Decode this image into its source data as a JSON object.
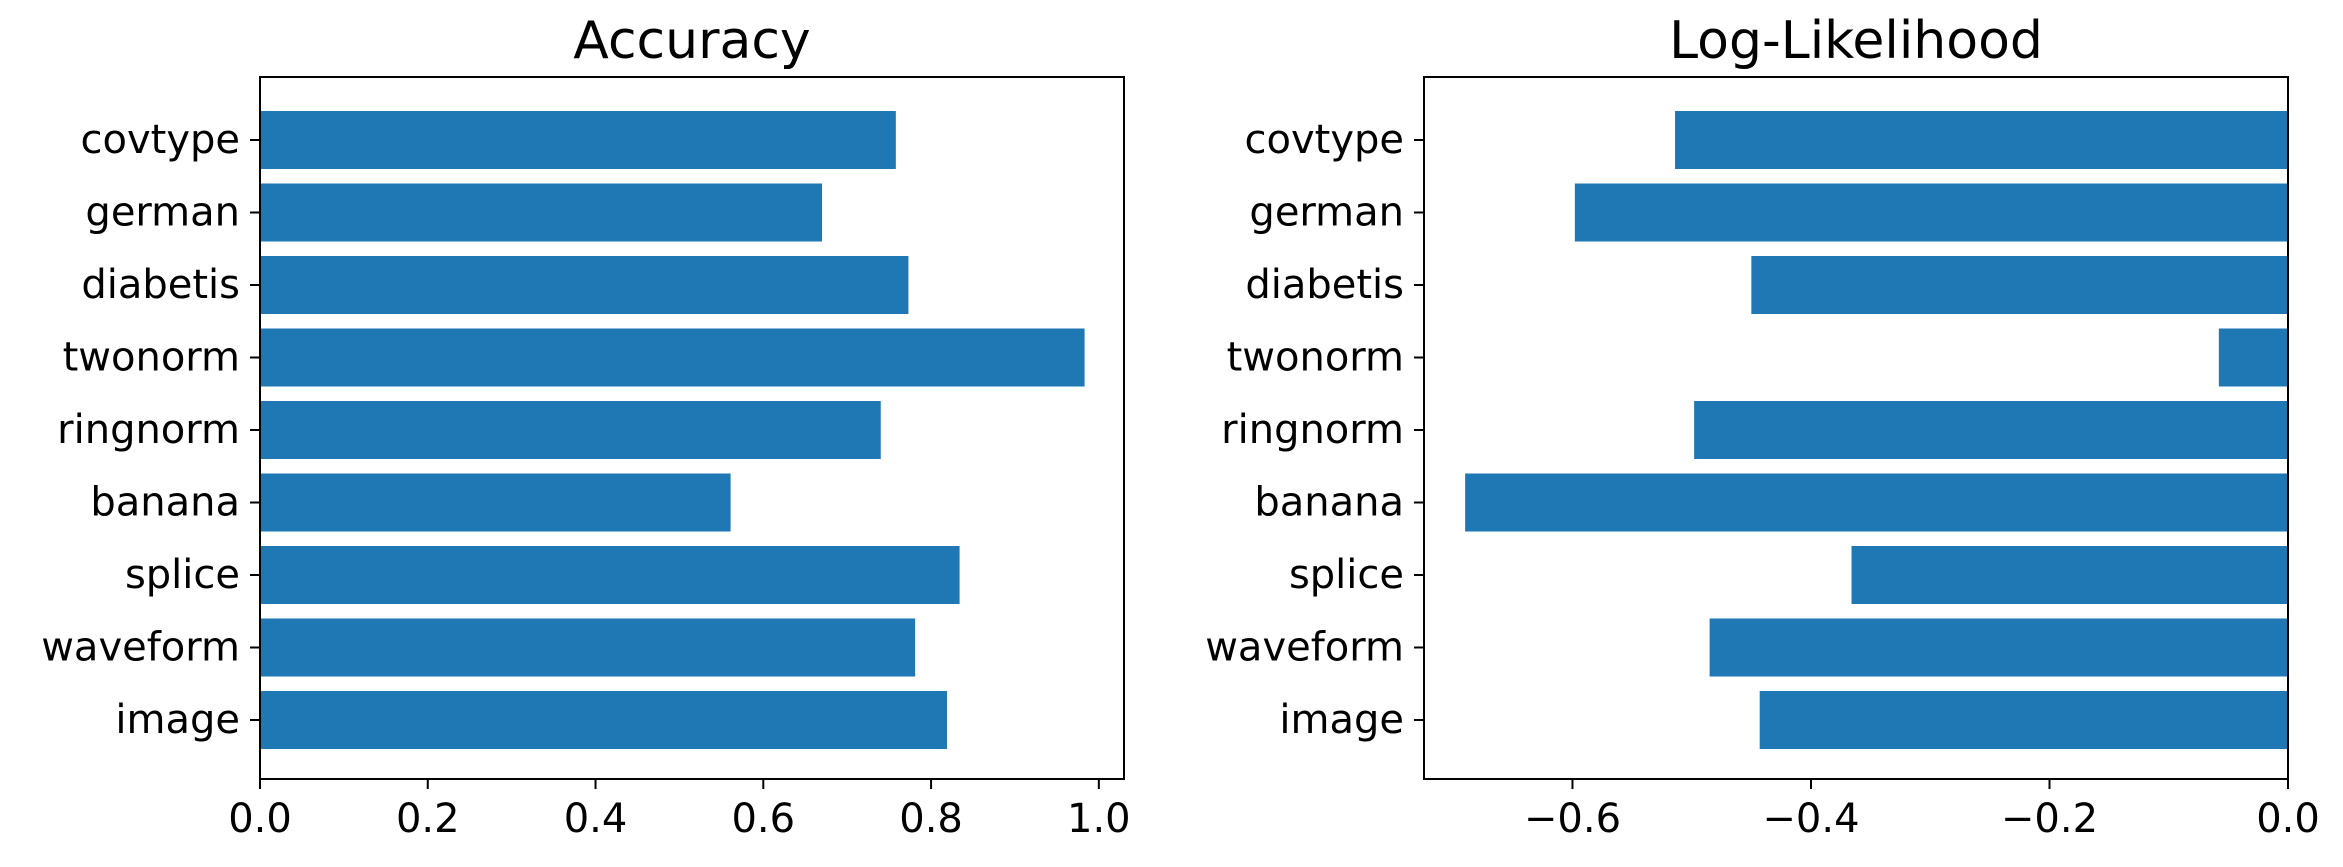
{
  "chart_data": [
    {
      "type": "bar",
      "orientation": "horizontal",
      "title": "Accuracy",
      "categories": [
        "covtype",
        "german",
        "diabetis",
        "twonorm",
        "ringnorm",
        "banana",
        "splice",
        "waveform",
        "image"
      ],
      "values": [
        0.758,
        0.67,
        0.773,
        0.983,
        0.74,
        0.561,
        0.834,
        0.781,
        0.819
      ],
      "xlim": [
        0.0,
        1.03
      ],
      "xticks": [
        0.0,
        0.2,
        0.4,
        0.6,
        0.8,
        1.0
      ],
      "xtick_labels": [
        "0.0",
        "0.2",
        "0.4",
        "0.6",
        "0.8",
        "1.0"
      ],
      "color": "#1f77b4",
      "grid": false
    },
    {
      "type": "bar",
      "orientation": "horizontal",
      "title": "Log-Likelihood",
      "categories": [
        "covtype",
        "german",
        "diabetis",
        "twonorm",
        "ringnorm",
        "banana",
        "splice",
        "waveform",
        "image"
      ],
      "values": [
        -0.514,
        -0.598,
        -0.45,
        -0.058,
        -0.498,
        -0.69,
        -0.366,
        -0.485,
        -0.443
      ],
      "xlim": [
        -0.7245,
        0.0
      ],
      "xticks": [
        -0.6,
        -0.4,
        -0.2,
        0.0
      ],
      "xtick_labels": [
        "−0.6",
        "−0.4",
        "−0.2",
        "0.0"
      ],
      "color": "#1f77b4",
      "grid": false
    }
  ]
}
